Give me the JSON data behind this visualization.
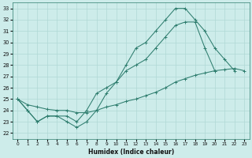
{
  "xlabel": "Humidex (Indice chaleur)",
  "xlim": [
    -0.5,
    23.5
  ],
  "ylim": [
    21.5,
    33.5
  ],
  "yticks": [
    22,
    23,
    24,
    25,
    26,
    27,
    28,
    29,
    30,
    31,
    32,
    33
  ],
  "xticks": [
    0,
    1,
    2,
    3,
    4,
    5,
    6,
    7,
    8,
    9,
    10,
    11,
    12,
    13,
    14,
    15,
    16,
    17,
    18,
    19,
    20,
    21,
    22,
    23
  ],
  "bg_color": "#cdecea",
  "grid_color": "#b0d8d5",
  "line_color": "#2e7d6e",
  "line1_x": [
    0,
    1,
    2,
    3,
    4,
    5,
    6,
    7,
    8,
    9,
    10,
    11,
    12,
    13,
    14,
    15,
    16,
    17,
    18,
    19,
    20,
    21,
    22
  ],
  "line1_y": [
    25,
    24,
    23,
    23.5,
    23.5,
    23,
    22.5,
    23,
    24,
    25.5,
    26.5,
    28,
    29.5,
    30,
    31,
    32,
    33,
    33,
    32,
    31,
    29.5,
    28.5,
    27.5
  ],
  "line2_x": [
    0,
    1,
    2,
    3,
    4,
    5,
    6,
    7,
    8,
    9,
    10,
    11,
    12,
    13,
    14,
    15,
    16,
    17,
    18,
    19,
    20,
    21,
    22,
    23
  ],
  "line2_y": [
    25,
    24,
    23,
    23.5,
    23.5,
    23.5,
    23,
    24,
    25.5,
    26,
    26.5,
    27.5,
    28.0,
    28.5,
    29.5,
    30.5,
    31.5,
    31.8,
    31.8,
    29.5,
    27.5,
    null,
    null,
    null
  ],
  "line3_x": [
    0,
    1,
    2,
    3,
    4,
    5,
    6,
    7,
    8,
    9,
    10,
    11,
    12,
    13,
    14,
    15,
    16,
    17,
    18,
    19,
    20,
    21,
    22,
    23
  ],
  "line3_y": [
    25,
    24.5,
    24.3,
    24.1,
    24.0,
    24.0,
    23.8,
    23.8,
    24.0,
    24.3,
    24.5,
    24.8,
    25.0,
    25.3,
    25.6,
    26.0,
    26.5,
    26.8,
    27.1,
    27.3,
    27.5,
    27.6,
    27.7,
    27.5
  ]
}
